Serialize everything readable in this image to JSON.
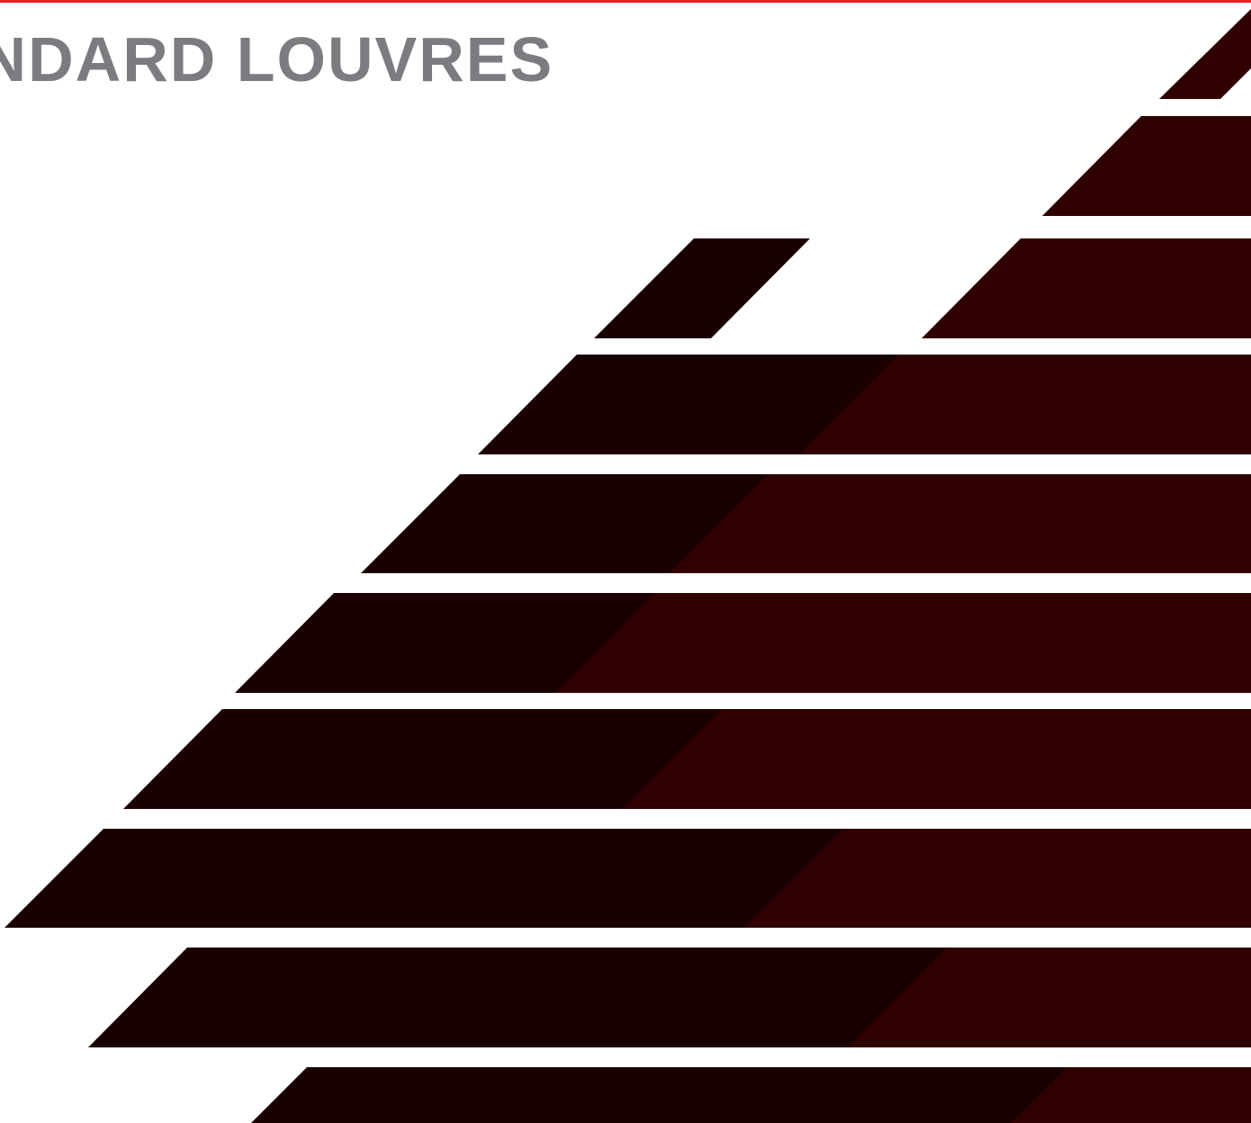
{
  "header": {
    "title": "ANDARD LOUVRES",
    "accent_color": "#ee1c25",
    "title_color": "#7b7c80"
  },
  "graphic": {
    "description_icon": "louvre-slats-graphic",
    "slat_dark_color": "#1a0000",
    "slat_light_color": "#300000"
  }
}
